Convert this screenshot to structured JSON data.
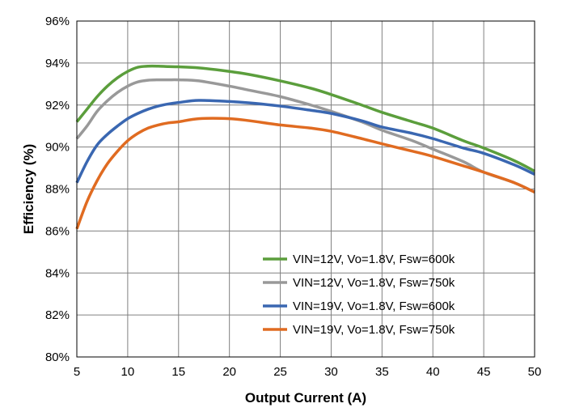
{
  "chart_data": {
    "type": "line",
    "title": "",
    "xlabel": "Output Current (A)",
    "ylabel": "Efficiency (%)",
    "xlim": [
      5,
      50
    ],
    "ylim": [
      80,
      96
    ],
    "xticks": [
      5,
      10,
      15,
      20,
      25,
      30,
      35,
      40,
      45,
      50
    ],
    "xtick_labels": [
      "5",
      "10",
      "15",
      "20",
      "25",
      "30",
      "35",
      "40",
      "45",
      "50"
    ],
    "yticks": [
      80,
      82,
      84,
      86,
      88,
      90,
      92,
      94,
      96
    ],
    "ytick_labels": [
      "80%",
      "82%",
      "84%",
      "86%",
      "88%",
      "90%",
      "92%",
      "94%",
      "96%"
    ],
    "grid": true,
    "legend_position": "bottom-right",
    "series": [
      {
        "name": "VIN=12V, Vo=1.8V, Fsw=600k",
        "color": "#5b9e3c",
        "x": [
          5,
          6,
          7,
          8,
          9,
          10,
          11,
          12,
          13,
          14,
          15,
          17,
          20,
          22,
          25,
          28,
          30,
          33,
          35,
          38,
          40,
          43,
          45,
          48,
          50
        ],
        "values": [
          91.2,
          91.8,
          92.4,
          92.9,
          93.3,
          93.6,
          93.8,
          93.85,
          93.85,
          93.83,
          93.82,
          93.77,
          93.6,
          93.45,
          93.15,
          92.8,
          92.5,
          92.0,
          91.65,
          91.2,
          90.9,
          90.3,
          89.95,
          89.35,
          88.85
        ]
      },
      {
        "name": "VIN=12V, Vo=1.8V, Fsw=750k",
        "color": "#999999",
        "x": [
          5,
          6,
          7,
          8,
          9,
          10,
          11,
          12,
          13,
          14,
          15,
          17,
          20,
          22,
          25,
          28,
          30,
          33,
          35,
          38,
          40,
          43,
          45,
          48,
          50
        ],
        "values": [
          90.4,
          91.0,
          91.7,
          92.2,
          92.6,
          92.9,
          93.1,
          93.18,
          93.2,
          93.2,
          93.2,
          93.15,
          92.9,
          92.7,
          92.4,
          92.0,
          91.7,
          91.2,
          90.8,
          90.3,
          89.9,
          89.3,
          88.8,
          88.3,
          87.85
        ]
      },
      {
        "name": "VIN=19V, Vo=1.8V, Fsw=600k",
        "color": "#3a67b1",
        "x": [
          5,
          6,
          7,
          8,
          9,
          10,
          11,
          12,
          13,
          14,
          15,
          17,
          20,
          22,
          25,
          28,
          30,
          33,
          35,
          38,
          40,
          43,
          45,
          48,
          50
        ],
        "values": [
          88.3,
          89.3,
          90.1,
          90.6,
          91.0,
          91.35,
          91.6,
          91.8,
          91.95,
          92.05,
          92.12,
          92.22,
          92.17,
          92.1,
          91.95,
          91.75,
          91.6,
          91.25,
          90.95,
          90.65,
          90.4,
          89.95,
          89.7,
          89.15,
          88.7
        ]
      },
      {
        "name": "VIN=19V, Vo=1.8V, Fsw=750k",
        "color": "#e06b21",
        "x": [
          5,
          6,
          7,
          8,
          9,
          10,
          11,
          12,
          13,
          14,
          15,
          17,
          20,
          22,
          25,
          28,
          30,
          33,
          35,
          38,
          40,
          43,
          45,
          48,
          50
        ],
        "values": [
          86.1,
          87.4,
          88.4,
          89.2,
          89.8,
          90.3,
          90.65,
          90.9,
          91.05,
          91.15,
          91.2,
          91.35,
          91.35,
          91.25,
          91.05,
          90.9,
          90.75,
          90.4,
          90.15,
          89.8,
          89.55,
          89.1,
          88.8,
          88.3,
          87.85
        ]
      }
    ]
  }
}
